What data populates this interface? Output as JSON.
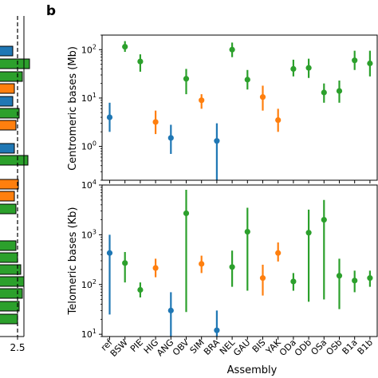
{
  "panel_label": "b",
  "left_panel": {
    "tick_label": "2.5",
    "bar_colors": [
      "blue",
      "green",
      "green",
      "orange",
      "blue",
      "green",
      "orange",
      "blue",
      "green",
      "orange",
      "orange",
      "green",
      "green",
      "green",
      "green",
      "green",
      "green",
      "green",
      "green"
    ]
  },
  "colors": {
    "blue": "#1f77b4",
    "green": "#2ca02c",
    "orange": "#ff7f0e",
    "red_label": "#d62728",
    "black_label": "#000000"
  },
  "chart_data": [
    {
      "type": "scatter",
      "ylabel": "Centromeric bases (Mb)",
      "yscale": "log",
      "ylim": [
        0.2,
        200
      ],
      "yticks": [
        1,
        10,
        100
      ],
      "ytick_labels": [
        "10^0",
        "10^1",
        "10^2"
      ],
      "points": [
        {
          "x": "ref",
          "y": 4,
          "low": 2,
          "high": 8,
          "color": "blue"
        },
        {
          "x": "BSW",
          "y": 115,
          "low": 90,
          "high": 150,
          "color": "green"
        },
        {
          "x": "PIE",
          "y": 57,
          "low": 35,
          "high": 80,
          "color": "green"
        },
        {
          "x": "HIG",
          "y": 3.2,
          "low": 1.8,
          "high": 5.5,
          "color": "orange"
        },
        {
          "x": "ANG",
          "y": 1.5,
          "low": 0.7,
          "high": 2.8,
          "color": "blue"
        },
        {
          "x": "OBV",
          "y": 25,
          "low": 12,
          "high": 40,
          "color": "green"
        },
        {
          "x": "SIM",
          "y": 9,
          "low": 6,
          "high": 12,
          "color": "orange"
        },
        {
          "x": "BRA",
          "y": 1.3,
          "low": 0.2,
          "high": 3,
          "color": "blue"
        },
        {
          "x": "NEL",
          "y": 100,
          "low": 70,
          "high": 140,
          "color": "green"
        },
        {
          "x": "GAU",
          "y": 24,
          "low": 15,
          "high": 38,
          "color": "green"
        },
        {
          "x": "BIS",
          "y": 10.5,
          "low": 5.5,
          "high": 18,
          "color": "orange"
        },
        {
          "x": "YAK",
          "y": 3.5,
          "low": 2,
          "high": 6,
          "color": "orange"
        },
        {
          "x": "ODa",
          "y": 40,
          "low": 28,
          "high": 62,
          "color": "green"
        },
        {
          "x": "ODb",
          "y": 42,
          "low": 26,
          "high": 65,
          "color": "green"
        },
        {
          "x": "OSa",
          "y": 13,
          "low": 8,
          "high": 20,
          "color": "green"
        },
        {
          "x": "OSb",
          "y": 14,
          "low": 8,
          "high": 23,
          "color": "green"
        },
        {
          "x": "B1a",
          "y": 60,
          "low": 38,
          "high": 95,
          "color": "green"
        },
        {
          "x": "B1b",
          "y": 52,
          "low": 28,
          "high": 95,
          "color": "green"
        }
      ]
    },
    {
      "type": "scatter",
      "xlabel": "Assembly",
      "ylabel": "Telomeric bases (Kb)",
      "yscale": "log",
      "ylim": [
        9,
        10000
      ],
      "yticks": [
        10,
        100,
        1000,
        10000
      ],
      "ytick_labels": [
        "10^1",
        "10^2",
        "10^3",
        "10^4"
      ],
      "categories": [
        "ref",
        "BSW",
        "PIE",
        "HIG",
        "ANG",
        "OBV",
        "SIM",
        "BRA",
        "NEL",
        "GAU",
        "BIS",
        "YAK",
        "ODa",
        "ODb",
        "OSa",
        "OSb",
        "B1a",
        "B1b"
      ],
      "category_colors": [
        "black",
        "black",
        "black",
        "black",
        "black",
        "black",
        "black",
        "black",
        "black",
        "black",
        "black",
        "black",
        "red",
        "red",
        "red",
        "red",
        "red",
        "red"
      ],
      "points": [
        {
          "x": "ref",
          "y": 430,
          "low": 25,
          "high": 1000,
          "color": "blue"
        },
        {
          "x": "BSW",
          "y": 270,
          "low": 110,
          "high": 450,
          "color": "green"
        },
        {
          "x": "PIE",
          "y": 78,
          "low": 55,
          "high": 110,
          "color": "green"
        },
        {
          "x": "HIG",
          "y": 215,
          "low": 140,
          "high": 330,
          "color": "orange"
        },
        {
          "x": "ANG",
          "y": 30,
          "low": 9,
          "high": 70,
          "color": "blue"
        },
        {
          "x": "OBV",
          "y": 2700,
          "low": 28,
          "high": 8000,
          "color": "green"
        },
        {
          "x": "SIM",
          "y": 260,
          "low": 170,
          "high": 380,
          "color": "orange"
        },
        {
          "x": "BRA",
          "y": 12,
          "low": 9,
          "high": 30,
          "color": "blue"
        },
        {
          "x": "NEL",
          "y": 225,
          "low": 90,
          "high": 480,
          "color": "green"
        },
        {
          "x": "GAU",
          "y": 1150,
          "low": 75,
          "high": 3500,
          "color": "green"
        },
        {
          "x": "BIS",
          "y": 135,
          "low": 60,
          "high": 250,
          "color": "orange"
        },
        {
          "x": "YAK",
          "y": 430,
          "low": 290,
          "high": 700,
          "color": "orange"
        },
        {
          "x": "ODa",
          "y": 115,
          "low": 75,
          "high": 170,
          "color": "green"
        },
        {
          "x": "ODb",
          "y": 1100,
          "low": 45,
          "high": 3200,
          "color": "green"
        },
        {
          "x": "OSa",
          "y": 2000,
          "low": 50,
          "high": 5000,
          "color": "green"
        },
        {
          "x": "OSb",
          "y": 150,
          "low": 32,
          "high": 330,
          "color": "green"
        },
        {
          "x": "B1a",
          "y": 120,
          "low": 70,
          "high": 190,
          "color": "green"
        },
        {
          "x": "B1b",
          "y": 135,
          "low": 90,
          "high": 190,
          "color": "green"
        }
      ]
    }
  ]
}
